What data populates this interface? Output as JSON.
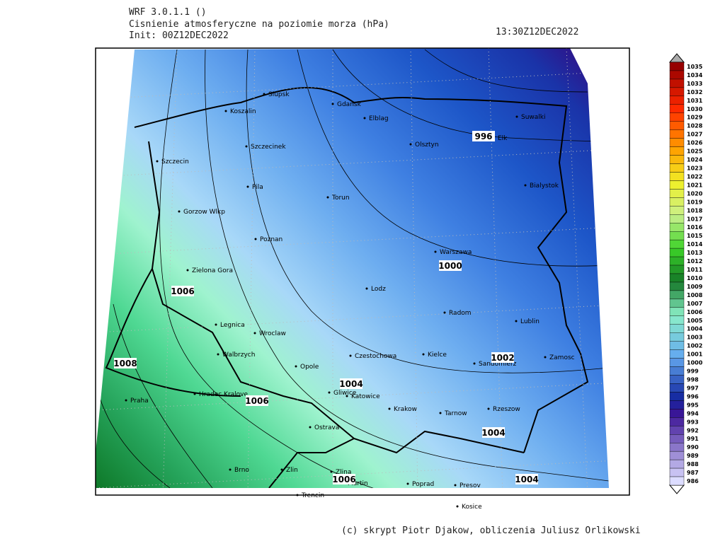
{
  "header": {
    "model": "WRF 3.0.1.1 ()",
    "title": "Cisnienie atmosferyczne na poziomie morza (hPa)",
    "init": "Init: 00Z12DEC2022",
    "valid": "13:30Z12DEC2022"
  },
  "cities": [
    "Slupsk",
    "Koszalin",
    "Gdansk",
    "Elblag",
    "Olsztyn",
    "Suwalki",
    "Elk",
    "Szczecinek",
    "Szczecin",
    "Bialystok",
    "Pila",
    "Torun",
    "Gorzow Wlkp",
    "Poznan",
    "Warszawa",
    "Zielona Gora",
    "Lodz",
    "Radom",
    "Lublin",
    "Legnica",
    "Wroclaw",
    "Walbrzych",
    "Czestochowa",
    "Kielce",
    "Sandomierz",
    "Zamosc",
    "Opole",
    "Gliwice",
    "Katowice",
    "Hradec Kralove",
    "Praha",
    "Krakow",
    "Tarnow",
    "Rzeszow",
    "Ostrava",
    "Brno",
    "Zlin",
    "Zlina",
    "Martin",
    "Poprad",
    "Presov",
    "Trencin",
    "Kosice"
  ],
  "contour_labels": [
    996,
    1000,
    1006,
    1008,
    1004,
    1006,
    1002,
    1004,
    1006,
    1004
  ],
  "legend": [
    1035,
    1034,
    1033,
    1032,
    1031,
    1030,
    1029,
    1028,
    1027,
    1026,
    1025,
    1024,
    1023,
    1022,
    1021,
    1020,
    1019,
    1018,
    1017,
    1016,
    1015,
    1014,
    1013,
    1012,
    1011,
    1010,
    1009,
    1008,
    1007,
    1006,
    1005,
    1004,
    1003,
    1002,
    1001,
    1000,
    999,
    998,
    997,
    996,
    995,
    994,
    993,
    992,
    991,
    990,
    989,
    988,
    987,
    986
  ],
  "footer": "(c) skrypt Piotr Djakow, obliczenia Juliusz Orlikowski"
}
